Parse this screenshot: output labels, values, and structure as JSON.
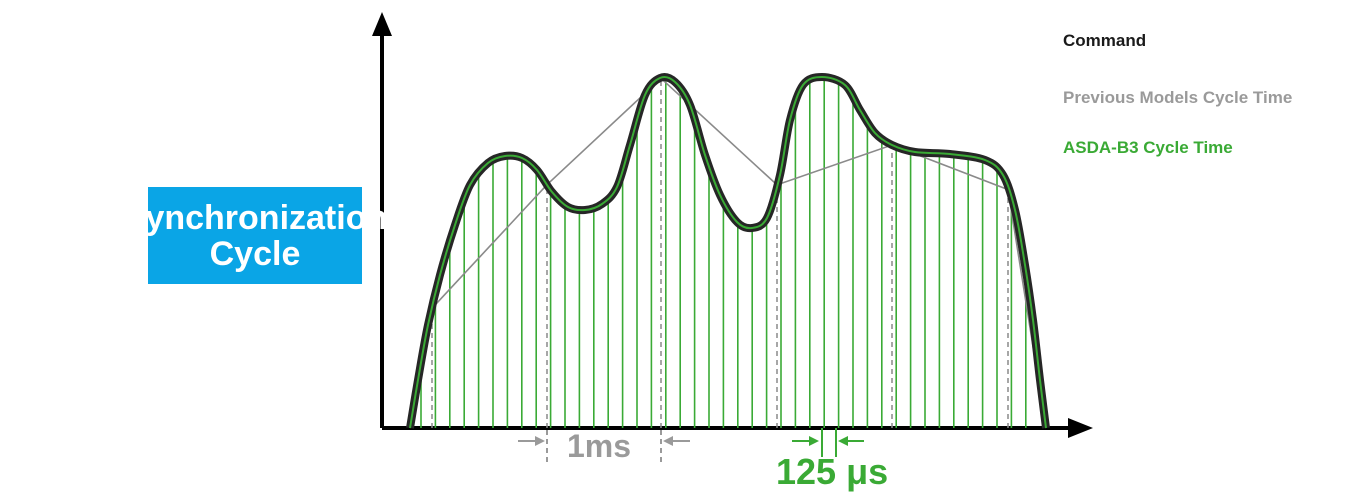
{
  "badge": {
    "line1": "Synchronization",
    "line2": "Cycle"
  },
  "legend": {
    "command": "Command",
    "previous": "Previous Models Cycle Time",
    "b3": "ASDA-B3 Cycle Time"
  },
  "intervals": {
    "previous_label": "1ms",
    "b3_label": "125 μs"
  },
  "colors": {
    "badge": "#0aa5e6",
    "command": "#2b2b2b",
    "previous": "#9a9a9a",
    "b3": "#3aaa35"
  }
}
